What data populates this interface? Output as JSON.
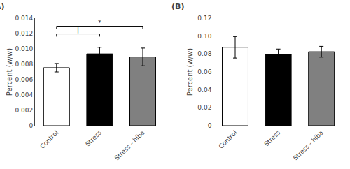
{
  "chart_data": [
    {
      "type": "bar",
      "title": "(A)",
      "categories": [
        "Control",
        "Stress",
        "Stress - hiba"
      ],
      "values": [
        0.00755,
        0.00935,
        0.00895
      ],
      "errors": [
        0.00055,
        0.00085,
        0.00115
      ],
      "colors": [
        "white",
        "black",
        "#808080"
      ],
      "ylabel": "Percent (w/w)",
      "ylim": [
        0,
        0.014
      ],
      "yticks": [
        0,
        0.002,
        0.004,
        0.006,
        0.008,
        {
          "value": 0.01,
          "label": "0.010"
        },
        0.012,
        0.014
      ],
      "grid": false,
      "annotations": [
        {
          "from": "Control",
          "to": "Stress",
          "y": 0.01195,
          "text": "†"
        },
        {
          "from": "Control",
          "to": "Stress - hiba",
          "y": 0.01295,
          "text": "*"
        }
      ]
    },
    {
      "type": "bar",
      "title": "(B)",
      "categories": [
        "Control",
        "Stress",
        "Stress - hiba"
      ],
      "values": [
        0.0875,
        0.0795,
        0.0825
      ],
      "errors": [
        0.012,
        0.006,
        0.006
      ],
      "colors": [
        "white",
        "black",
        "#808080"
      ],
      "ylabel": "Percent (w/w)",
      "ylim": [
        0,
        0.12
      ],
      "yticks": [
        0,
        0.02,
        0.04,
        0.06,
        0.08,
        {
          "value": 0.1,
          "label": "0.10"
        },
        0.12
      ],
      "grid": false
    }
  ]
}
